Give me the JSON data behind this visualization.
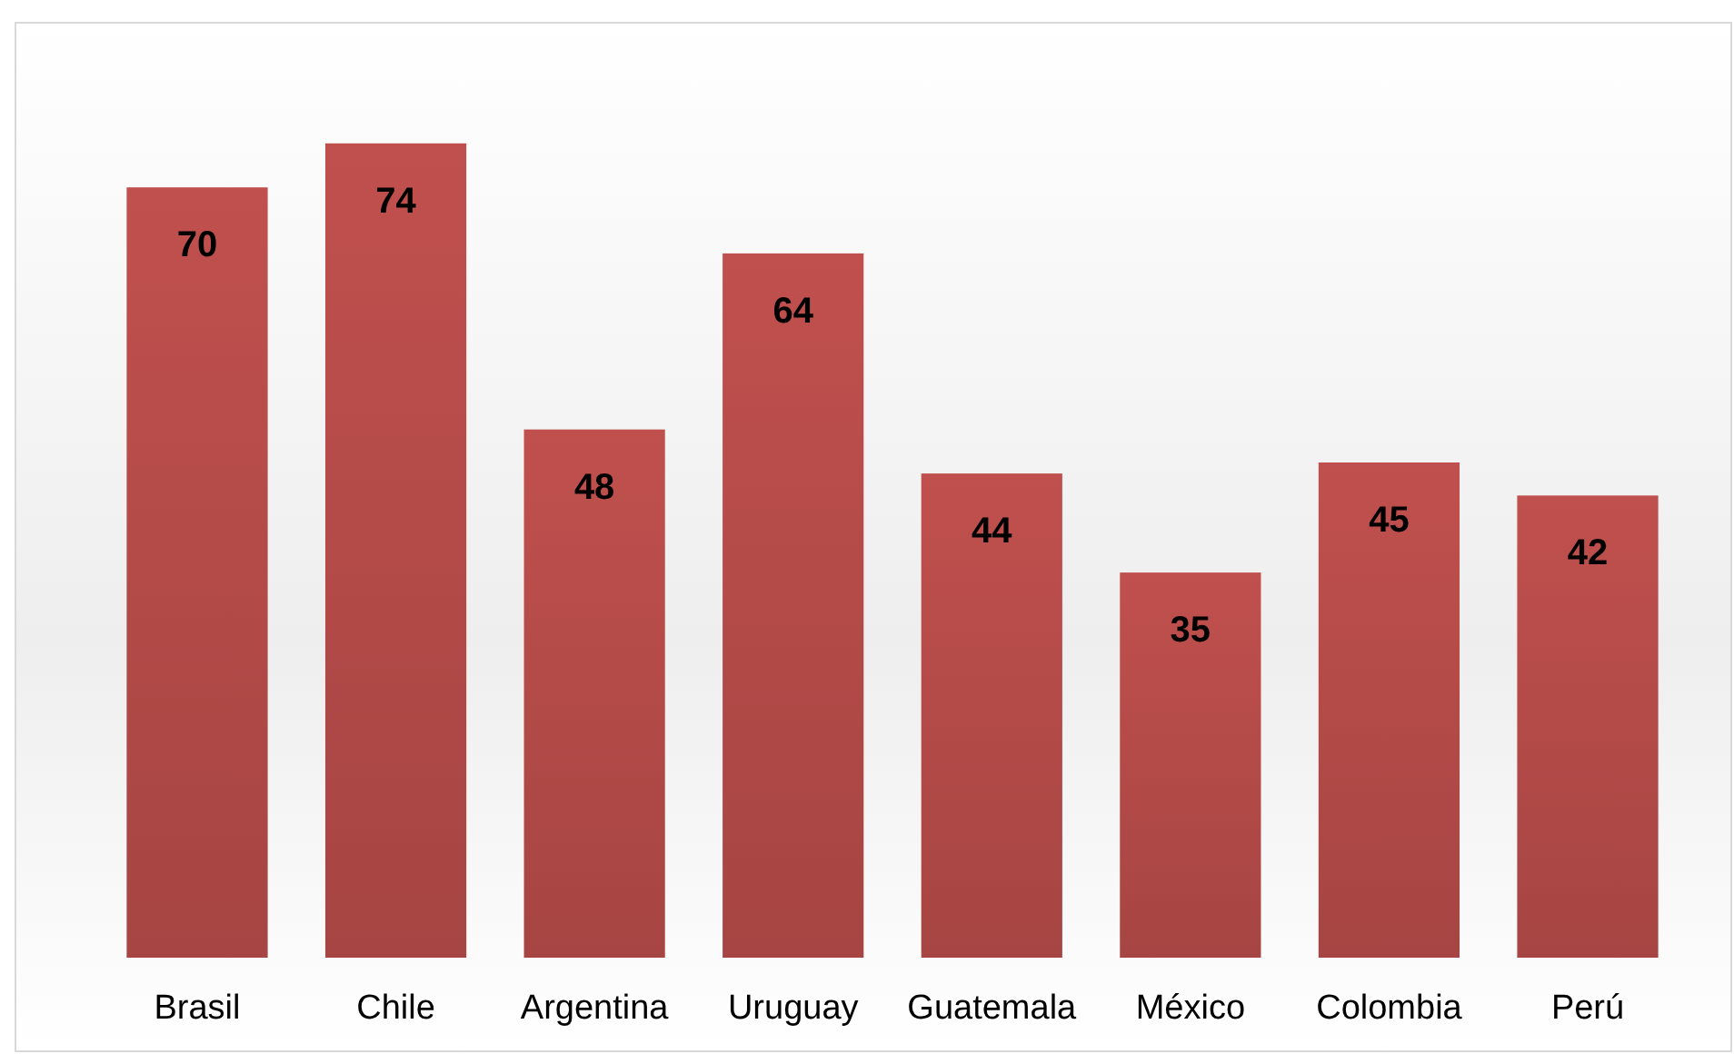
{
  "chart_data": {
    "type": "bar",
    "categories": [
      "Brasil",
      "Chile",
      "Argentina",
      "Uruguay",
      "Guatemala",
      "México",
      "Colombia",
      "Perú"
    ],
    "values": [
      70,
      74,
      48,
      64,
      44,
      35,
      45,
      42
    ],
    "color": "#c0504d",
    "data_labels": true
  }
}
